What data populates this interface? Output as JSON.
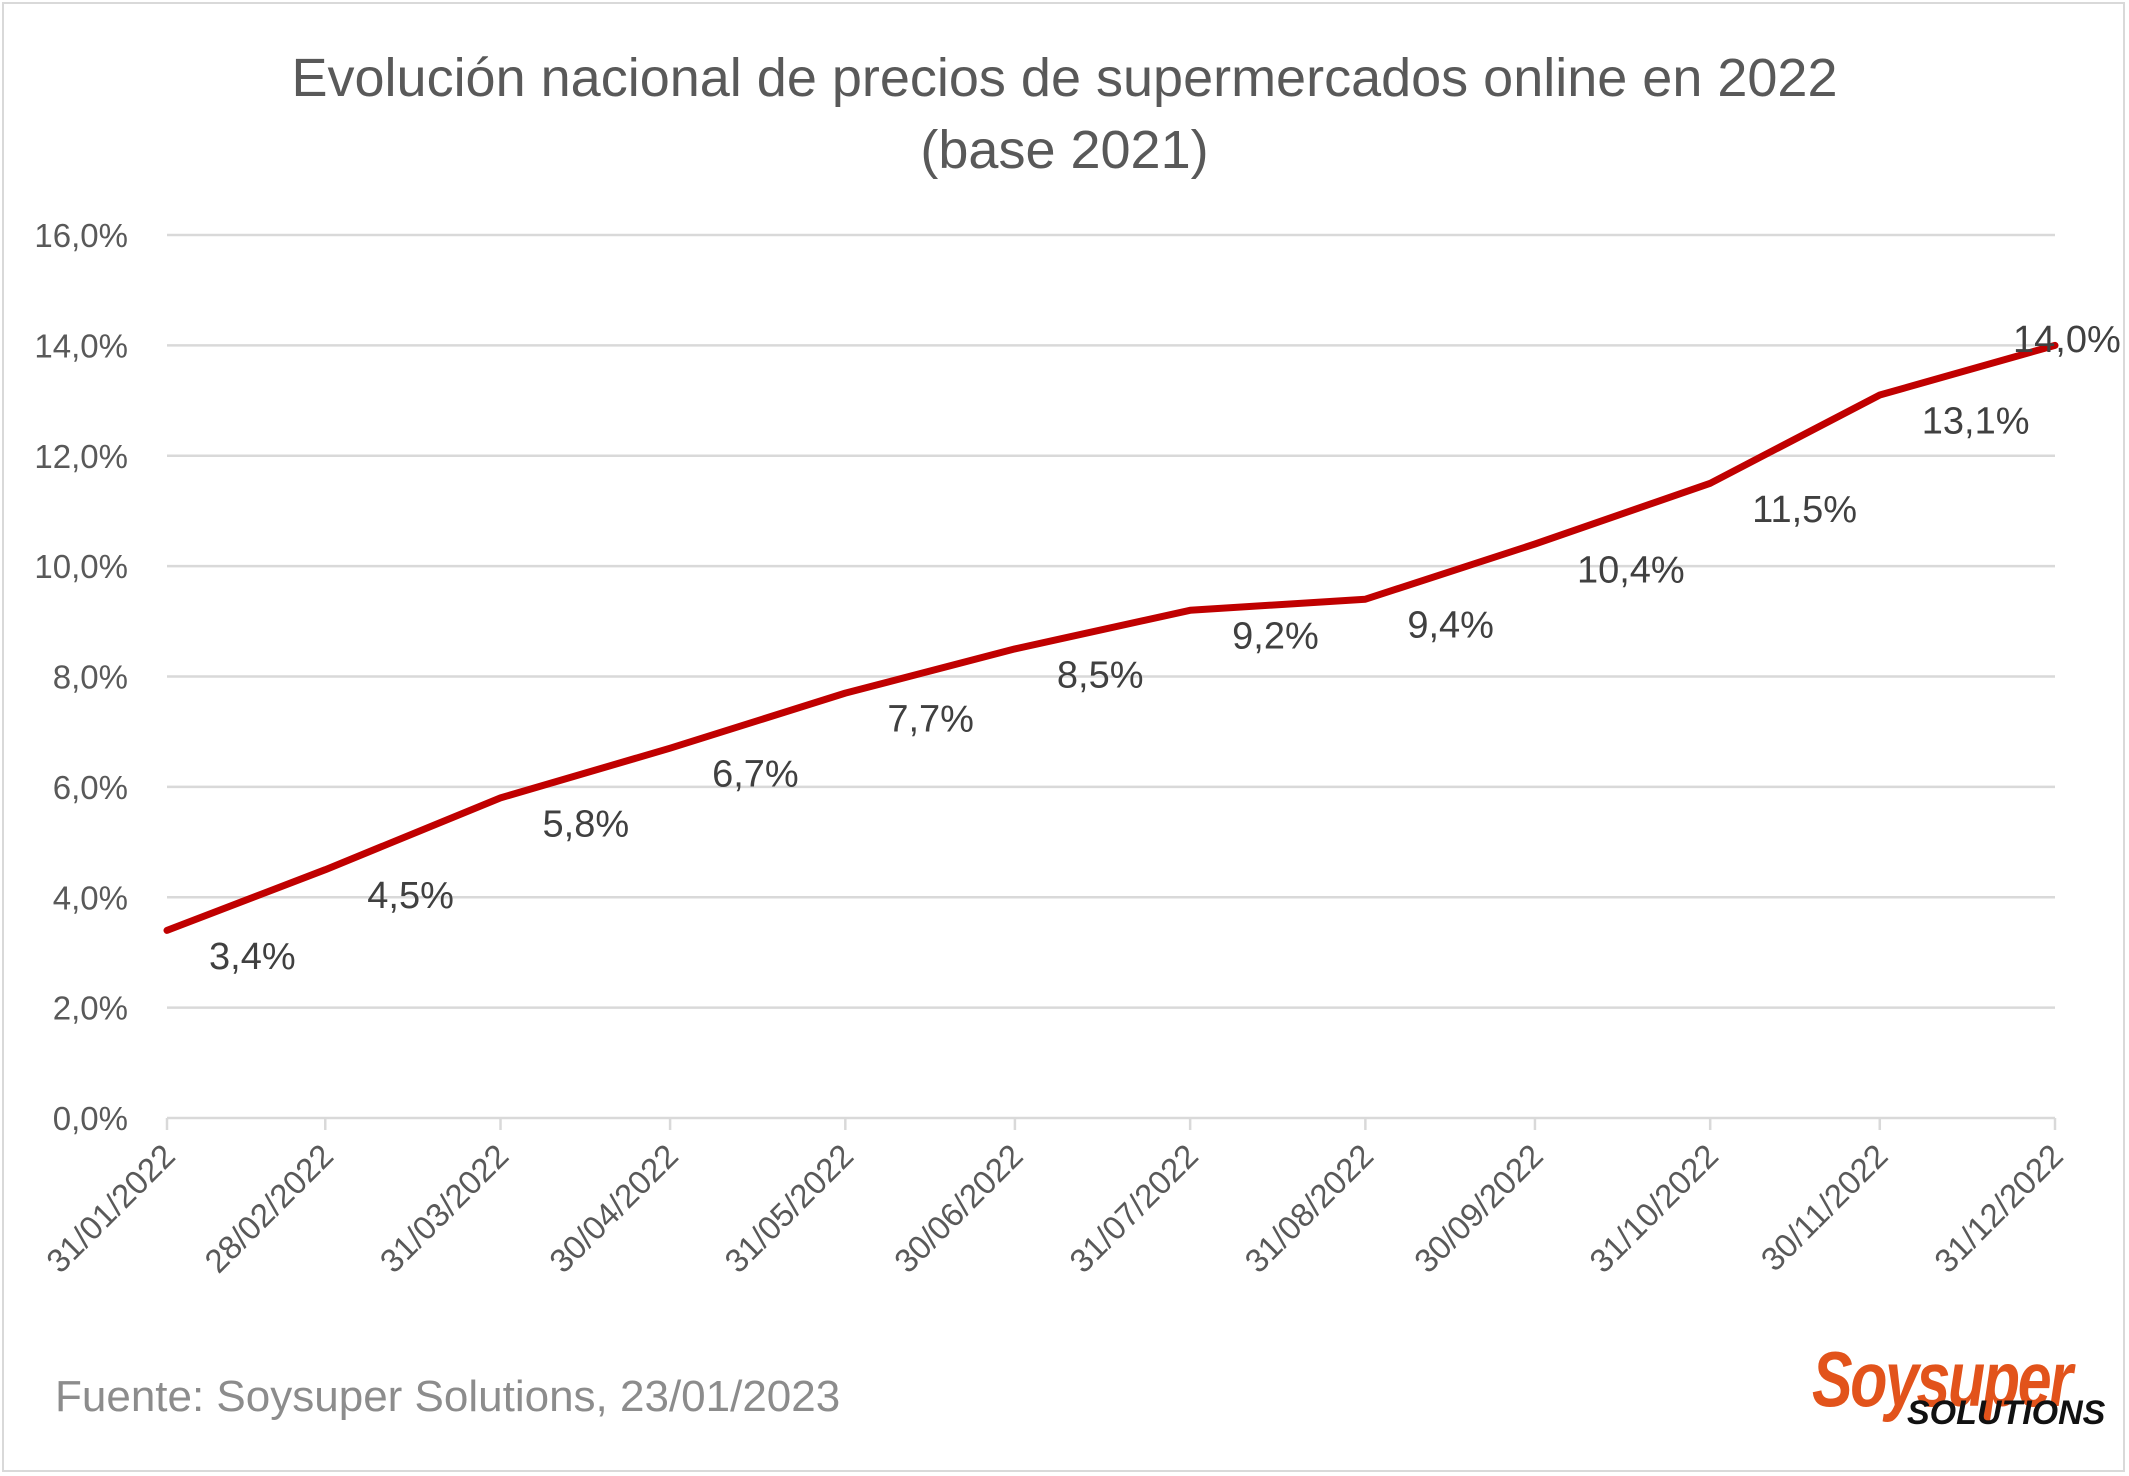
{
  "chart_data": {
    "type": "line",
    "title": [
      "Evolución nacional de precios de supermercados online en 2022",
      "(base 2021)"
    ],
    "categories": [
      "31/01/2022",
      "28/02/2022",
      "31/03/2022",
      "30/04/2022",
      "31/05/2022",
      "30/06/2022",
      "31/07/2022",
      "31/08/2022",
      "30/09/2022",
      "31/10/2022",
      "30/11/2022",
      "31/12/2022"
    ],
    "series": [
      {
        "values": [
          3.4,
          4.5,
          5.8,
          6.7,
          7.7,
          8.5,
          9.2,
          9.4,
          10.4,
          11.5,
          13.1,
          14.0
        ],
        "labels": [
          "3,4%",
          "4,5%",
          "5,8%",
          "6,7%",
          "7,7%",
          "8,5%",
          "9,2%",
          "9,4%",
          "10,4%",
          "11,5%",
          "13,1%",
          "14,0%"
        ],
        "color": "#c00000"
      }
    ],
    "x_axis": {
      "type": "date"
    },
    "ylim": [
      0,
      16
    ],
    "yticks": [
      0,
      2,
      4,
      6,
      8,
      10,
      12,
      14,
      16
    ],
    "ytick_labels": [
      "0,0%",
      "2,0%",
      "4,0%",
      "6,0%",
      "8,0%",
      "10,0%",
      "12,0%",
      "14,0%",
      "16,0%"
    ],
    "grid": "horizontal",
    "legend": "none",
    "gridline_color": "#d9d9d9"
  },
  "source_text": "Fuente: Soysuper Solutions, 23/01/2023",
  "logo": {
    "main": "Soysuper",
    "sub": "SOLUTIONS"
  }
}
